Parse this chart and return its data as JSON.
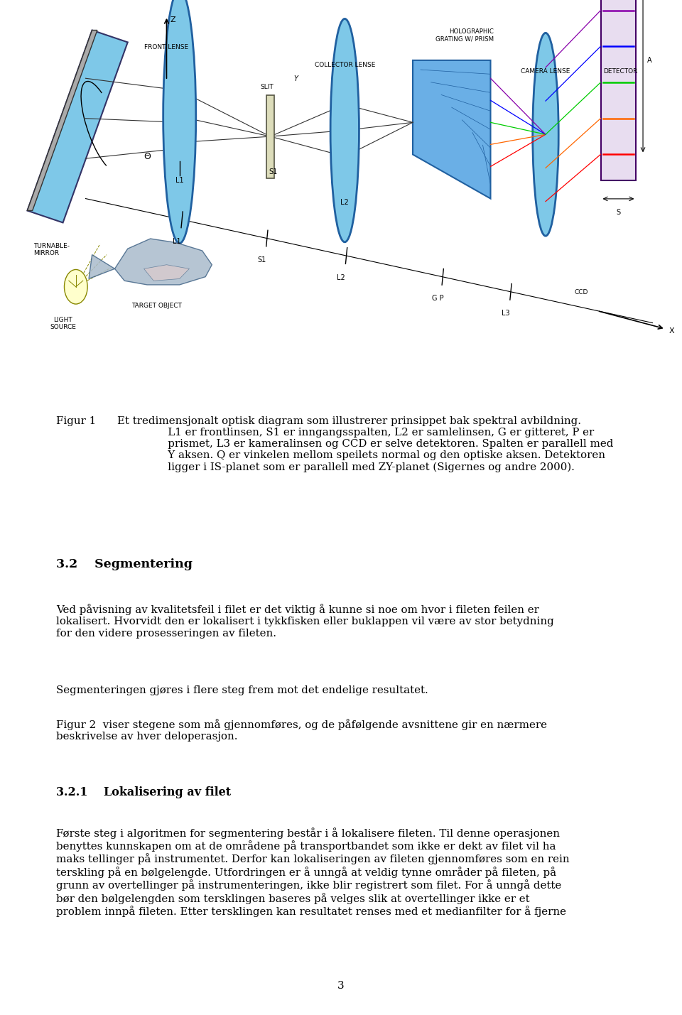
{
  "background_color": "#ffffff",
  "page_width": 9.6,
  "page_height": 14.29,
  "fig_caption_label": "Figur 1",
  "fig_caption_text": "Et tredimensjonalt optisk diagram som illustrerer prinsippet bak spektral avbildning.\n               L1 er frontlinsen, S1 er inngangsspalten, L2 er samlelinsen, G er gitteret, P er\n               prismet, L3 er kameralinsen og CCD er selve detektoren. Spalten er parallell med\n               Y aksen. Q er vinkelen mellom speilets normal og den optiske aksen. Detektoren\n               ligger i IS-planet som er parallell med ZY-planet (Sigernes og andre 2000).",
  "section_32_title": "3.2    Segmentering",
  "section_32_body": "Ved påvisning av kvalitetsfeil i filet er det viktig å kunne si noe om hvor i fileten feilen er\nlokalisert. Hvorvidt den er lokalisert i tykkfisken eller buklappen vil være av stor betydning\nfor den videre prosesseringen av fileten.",
  "section_seg_body2": "Segmenteringen gjøres i flere steg frem mot det endelige resultatet.",
  "section_fig2": "Figur 2  viser stegene som må gjennomføres, og de påfølgende avsnittene gir en nærmere\nbeskrivelse av hver deloperasjon.",
  "section_321_title": "3.2.1    Lokalisering av filet",
  "section_321_body": "Første steg i algoritmen for segmentering består i å lokalisere fileten. Til denne operasjonen\nbenyttes kunnskapen om at de områdene på transportbandet som ikke er dekt av filet vil ha\nmaks tellinger på instrumentet. Derfor kan lokaliseringen av fileten gjennomføres som en rein\nterskling på en bølgelengde. Utfordringen er å unngå at veldig tynne områder på fileten, på\ngrunn av overtellinger på instrumenteringen, ikke blir registrert som filet. For å unngå dette\nbør den bølgelengden som tersklingen baseres på velges slik at overtellinger ikke er et\nproblem innpå fileten. Etter tersklingen kan resultatet renses med et medianfilter for å fjerne",
  "page_number": "3",
  "text_color": "#000000",
  "body_fontsize": 10.8,
  "caption_fontsize": 10.8,
  "section_title_fontsize": 12.5,
  "section_321_title_fontsize": 11.5,
  "mirror_color": "#7EC8E8",
  "mirror_edge": "#333366",
  "lens_color": "#7EC8E8",
  "lens_edge": "#2060A0",
  "prism_color": "#6AAFE6",
  "detector_color": "#E8DDF0",
  "detector_edge": "#440066",
  "bulb_color": "#FFFFCC",
  "ray_colors": [
    "#FF0000",
    "#FF6600",
    "#00CC00",
    "#0000FF",
    "#8800AA"
  ],
  "axis_line_color": "#000000",
  "label_color": "#000000"
}
